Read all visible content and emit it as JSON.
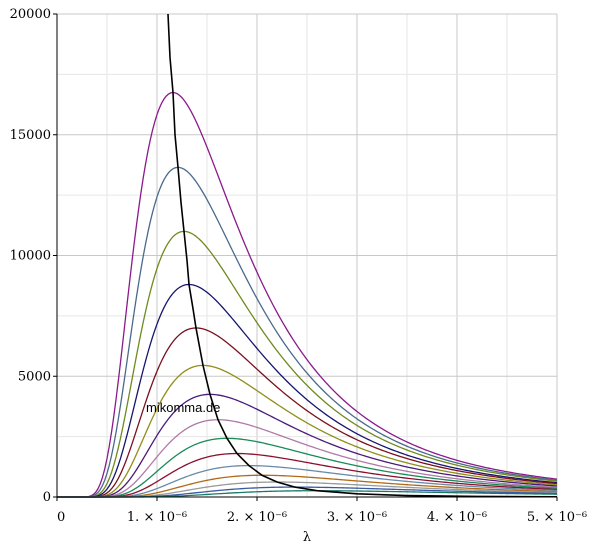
{
  "chart_data": {
    "type": "line",
    "title": "",
    "xlabel": "λ",
    "ylabel": "",
    "xlim": [
      0,
      5e-06
    ],
    "ylim": [
      0,
      20000
    ],
    "grid": true,
    "legend": "none",
    "watermark": "mikomma.de",
    "y_ticks": [
      {
        "value": 0,
        "label": "0"
      },
      {
        "value": 5000,
        "label": "5000"
      },
      {
        "value": 10000,
        "label": "10000"
      },
      {
        "value": 15000,
        "label": "15000"
      },
      {
        "value": 20000,
        "label": "20000"
      }
    ],
    "x_ticks": [
      {
        "value": 0,
        "label": "0"
      },
      {
        "value": 1e-06,
        "label": "1. × 10⁻⁶"
      },
      {
        "value": 2e-06,
        "label": "2. × 10⁻⁶"
      },
      {
        "value": 3e-06,
        "label": "3. × 10⁻⁶"
      },
      {
        "value": 4e-06,
        "label": "4. × 10⁻⁶"
      },
      {
        "value": 5e-06,
        "label": "5. × 10⁻⁶"
      }
    ],
    "series": [
      {
        "color": "#8b1a8b",
        "peak_x": 1.16e-06,
        "peak_y": 16750,
        "tail_x": 5e-06,
        "tail_y": 720
      },
      {
        "color": "#4a6a8c",
        "peak_x": 1.21e-06,
        "peak_y": 13650,
        "tail_x": 5e-06,
        "tail_y": 650
      },
      {
        "color": "#6f8a1f",
        "peak_x": 1.27e-06,
        "peak_y": 11000,
        "tail_x": 5e-06,
        "tail_y": 590
      },
      {
        "color": "#16166e",
        "peak_x": 1.32e-06,
        "peak_y": 8800,
        "tail_x": 5e-06,
        "tail_y": 530
      },
      {
        "color": "#7a1020",
        "peak_x": 1.39e-06,
        "peak_y": 7000,
        "tail_x": 5e-06,
        "tail_y": 470
      },
      {
        "color": "#8f8f1a",
        "peak_x": 1.46e-06,
        "peak_y": 5450,
        "tail_x": 5e-06,
        "tail_y": 410
      },
      {
        "color": "#4a1a7a",
        "peak_x": 1.53e-06,
        "peak_y": 4250,
        "tail_x": 5e-06,
        "tail_y": 360
      },
      {
        "color": "#b07aa8",
        "peak_x": 1.61e-06,
        "peak_y": 3200,
        "tail_x": 5e-06,
        "tail_y": 310
      },
      {
        "color": "#1a8a5a",
        "peak_x": 1.7e-06,
        "peak_y": 2430,
        "tail_x": 5e-06,
        "tail_y": 265
      },
      {
        "color": "#8a1030",
        "peak_x": 1.8e-06,
        "peak_y": 1800,
        "tail_x": 5e-06,
        "tail_y": 220
      },
      {
        "color": "#6a8aa8",
        "peak_x": 1.92e-06,
        "peak_y": 1300,
        "tail_x": 5e-06,
        "tail_y": 180
      },
      {
        "color": "#b06a1a",
        "peak_x": 2.05e-06,
        "peak_y": 900,
        "tail_x": 5e-06,
        "tail_y": 145
      },
      {
        "color": "#9a9a9a",
        "peak_x": 2.2e-06,
        "peak_y": 620,
        "tail_x": 5e-06,
        "tail_y": 115
      },
      {
        "color": "#3a5aa0",
        "peak_x": 2.38e-06,
        "peak_y": 410,
        "tail_x": 5e-06,
        "tail_y": 90
      },
      {
        "color": "#1a7a6a",
        "peak_x": 2.6e-06,
        "peak_y": 260,
        "tail_x": 5e-06,
        "tail_y": 65
      }
    ],
    "peak_locus": {
      "color": "#000000",
      "points": [
        [
          1.11e-06,
          20000
        ],
        [
          1.13e-06,
          18200
        ],
        [
          1.16e-06,
          16750
        ],
        [
          1.18e-06,
          15000
        ],
        [
          1.21e-06,
          13650
        ],
        [
          1.24e-06,
          12200
        ],
        [
          1.27e-06,
          11000
        ],
        [
          1.3e-06,
          9800
        ],
        [
          1.32e-06,
          8800
        ],
        [
          1.36e-06,
          7800
        ],
        [
          1.39e-06,
          7000
        ],
        [
          1.46e-06,
          5450
        ],
        [
          1.53e-06,
          4250
        ],
        [
          1.61e-06,
          3200
        ],
        [
          1.7e-06,
          2430
        ],
        [
          1.8e-06,
          1800
        ],
        [
          1.92e-06,
          1300
        ],
        [
          2.05e-06,
          900
        ],
        [
          2.2e-06,
          620
        ],
        [
          2.38e-06,
          410
        ],
        [
          2.6e-06,
          260
        ],
        [
          3e-06,
          130
        ],
        [
          3.5e-06,
          60
        ],
        [
          4.2e-06,
          25
        ],
        [
          5e-06,
          10
        ]
      ]
    }
  }
}
